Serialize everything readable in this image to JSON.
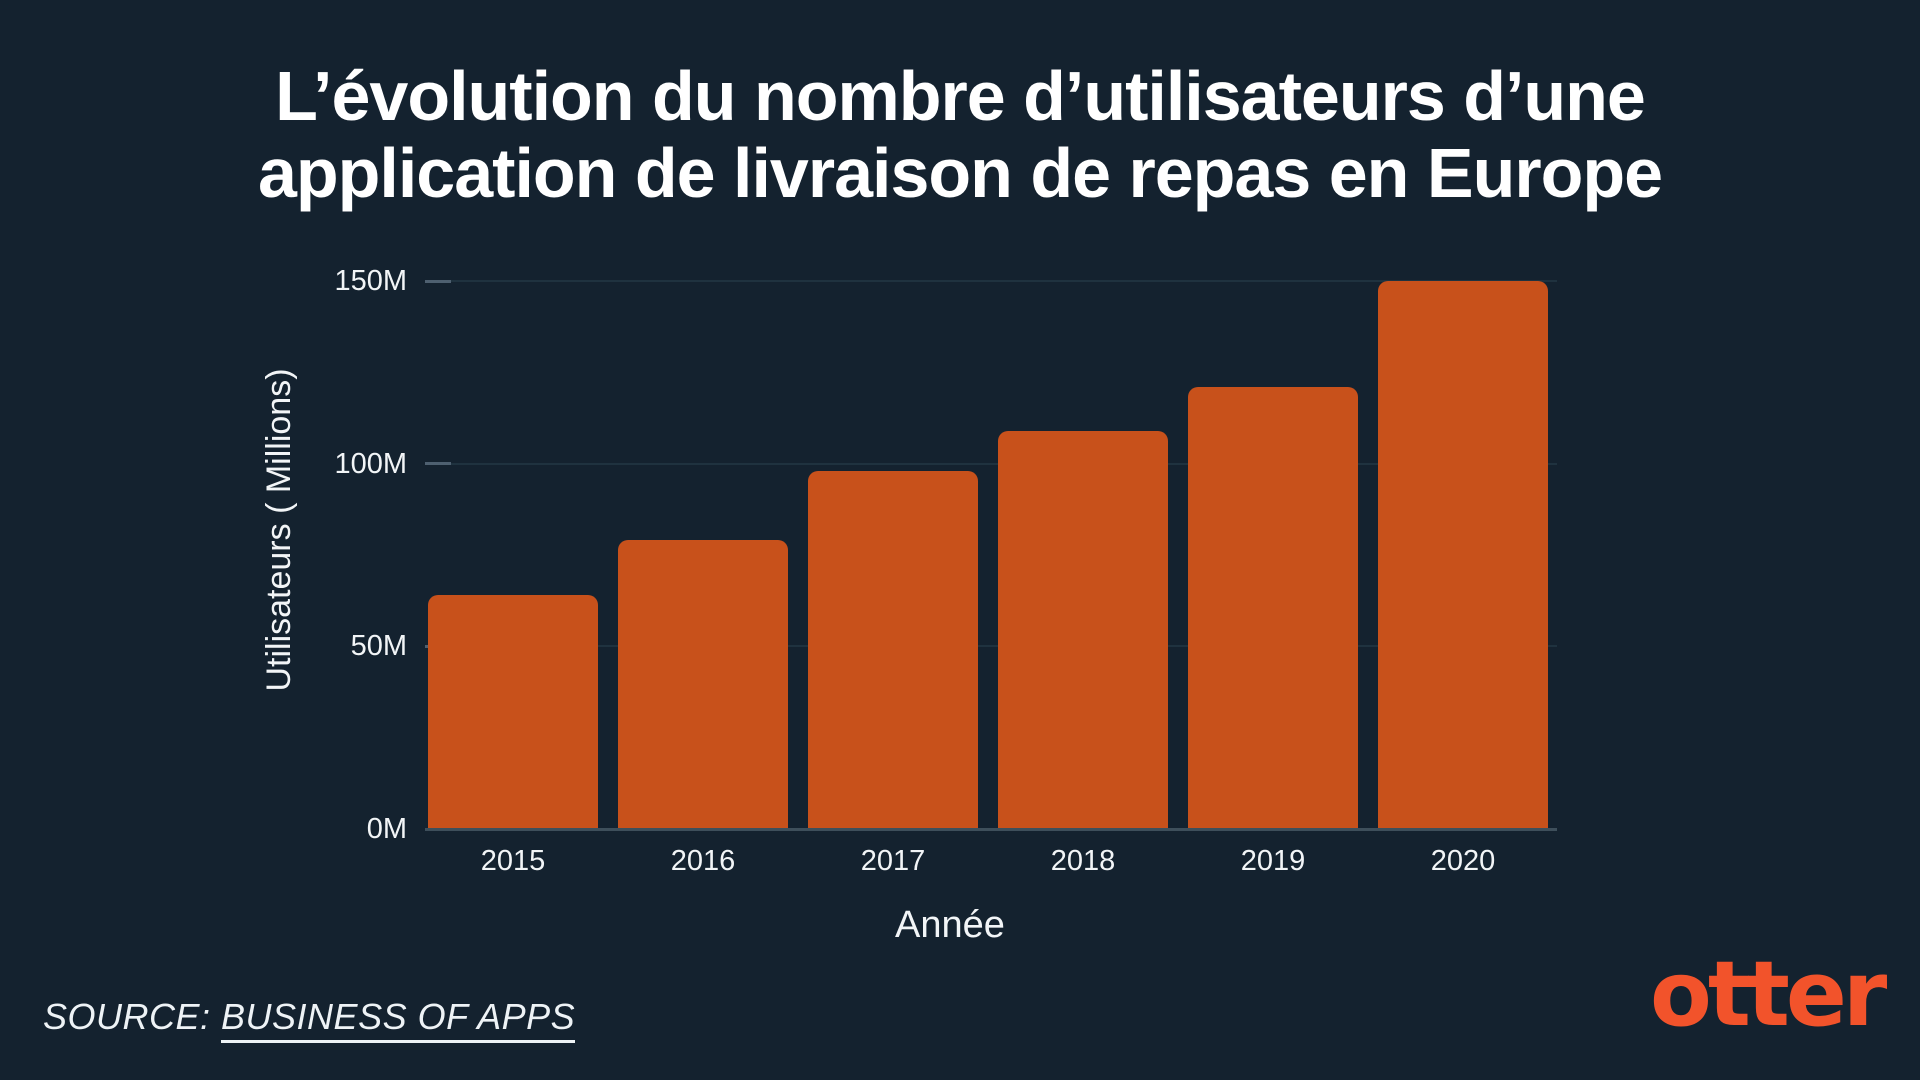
{
  "title": {
    "line1": "L’évolution du nombre d’utilisateurs d’une",
    "line2": "application de livraison de repas en Europe"
  },
  "chart_data": {
    "type": "bar",
    "title": "L’évolution du nombre d’utilisateurs d’une application de livraison de repas en Europe",
    "categories": [
      "2015",
      "2016",
      "2017",
      "2018",
      "2019",
      "2020"
    ],
    "values": [
      64,
      79,
      98,
      109,
      121,
      150
    ],
    "unit": "M",
    "xlabel": "Année",
    "ylabel": "Utilisateurs ( Millions)",
    "yticks": [
      0,
      50,
      100,
      150
    ],
    "ytick_labels": [
      "0M",
      "50M",
      "100M",
      "150M"
    ],
    "ylim": [
      0,
      150
    ],
    "grid": true,
    "legend": "none",
    "bar_color": "#C8511B"
  },
  "footer": {
    "source_prefix": "SOURCE: ",
    "source_link": "BUSINESS OF APPS"
  },
  "branding": {
    "logo_text": "otter",
    "logo_color": "#F2532B"
  },
  "colors": {
    "background": "#14222F",
    "bar": "#C8511B",
    "accent_orange": "#F2532B",
    "text": "#F2F5F7",
    "gridline": "#1F323F",
    "tick": "#4E6070",
    "axis_line": "#3E4F5B"
  }
}
